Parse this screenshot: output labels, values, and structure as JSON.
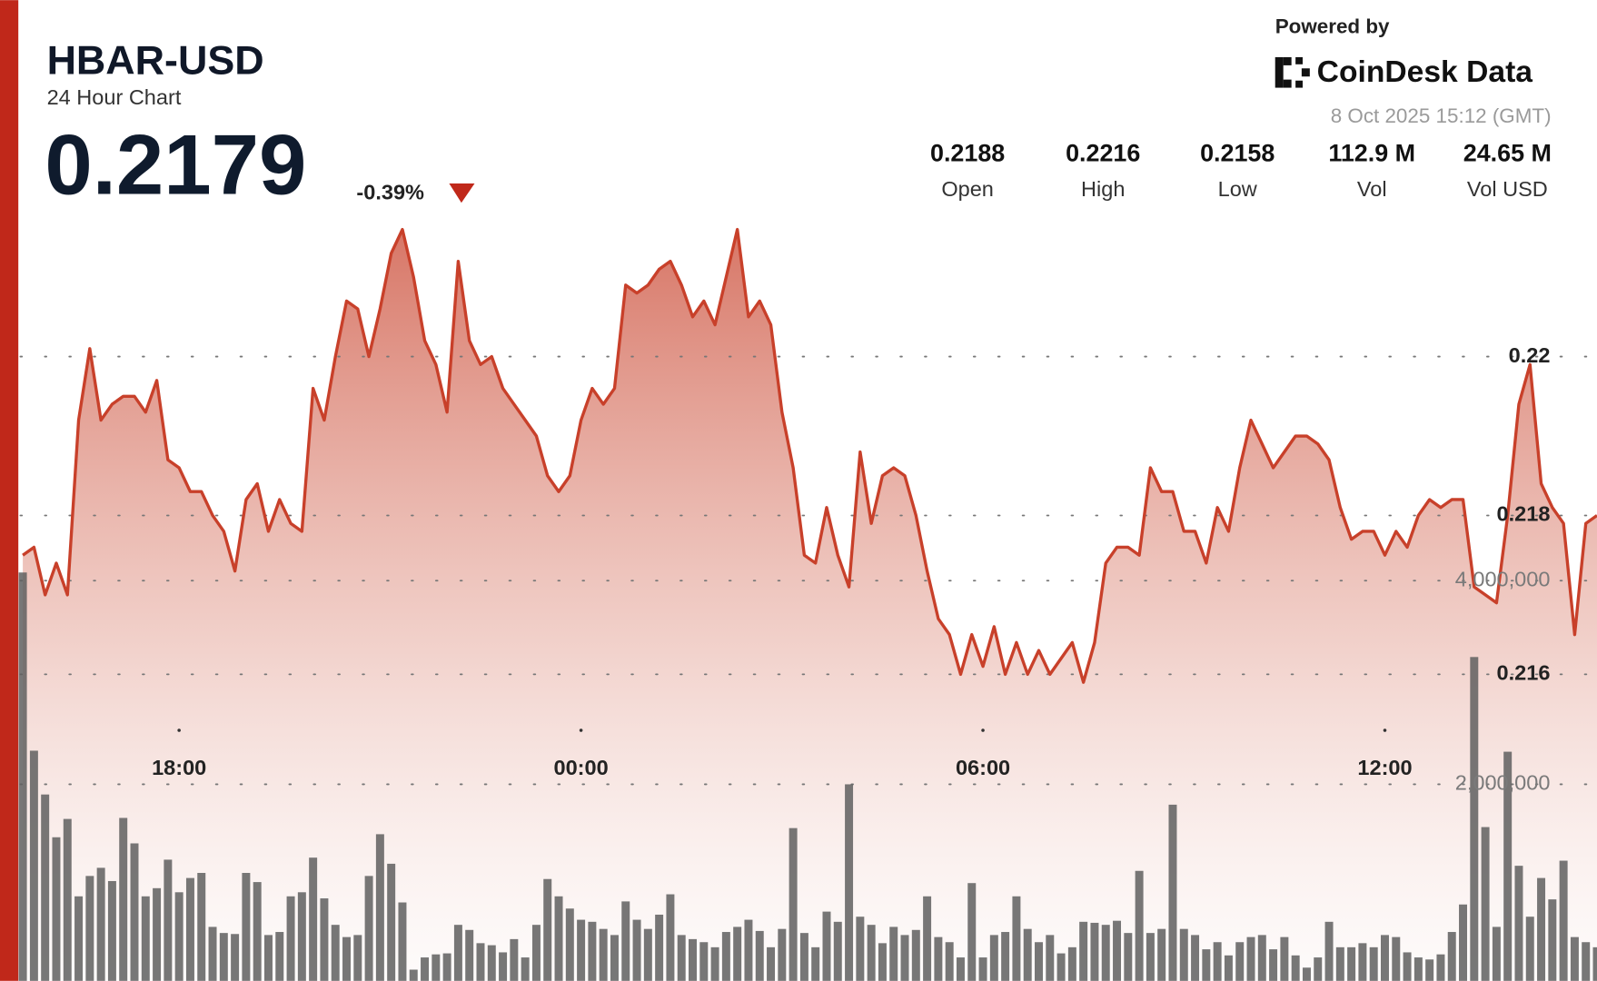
{
  "header": {
    "title": "HBAR-USD",
    "subtitle": "24 Hour Chart",
    "price": "0.2179",
    "change": "-0.39%",
    "powered_by": "Powered by",
    "brand": "CoinDesk Data",
    "timestamp": "8 Oct 2025 15:12 (GMT)",
    "stats": [
      {
        "value": "0.2188",
        "label": "Open"
      },
      {
        "value": "0.2216",
        "label": "High"
      },
      {
        "value": "0.2158",
        "label": "Low"
      },
      {
        "value": "112.9 M",
        "label": "Vol"
      },
      {
        "value": "24.65 M",
        "label": "Vol USD"
      }
    ]
  },
  "chart_data": {
    "type": "line",
    "x": [
      940,
      950,
      960,
      970,
      980,
      990,
      1000,
      1010,
      1020,
      1030,
      1040,
      1050,
      1060,
      1070,
      1080,
      1090,
      1100,
      1110,
      1120,
      1130,
      1140,
      1150,
      1160,
      1170,
      1180,
      1190,
      1200,
      1210,
      1220,
      1230,
      1240,
      1250,
      1260,
      1270,
      1280,
      1290,
      1300,
      1310,
      1320,
      1330,
      1340,
      1350,
      1360,
      1370,
      1380,
      1390,
      1400,
      1410,
      1420,
      1430,
      1440,
      1450,
      1460,
      1470,
      1480,
      1490,
      1500,
      1510,
      1520,
      1530,
      1540,
      1550,
      1560,
      1570,
      1580,
      1590,
      1600,
      1610,
      1620,
      1630,
      1640,
      1650,
      1660,
      1670,
      1680,
      1690,
      1700,
      1710,
      1720,
      1730,
      1740,
      1750,
      1760,
      1770,
      1780,
      1790,
      1800,
      1810,
      1820,
      1830,
      1840,
      1850,
      1860,
      1870,
      1880,
      1890,
      1900,
      1910,
      1920,
      1930,
      1940,
      1950,
      1960,
      1970,
      1980,
      1990,
      2000,
      2010,
      2020,
      2030,
      2040,
      2050,
      2060,
      2070,
      2080,
      2090,
      2100,
      2110,
      2120,
      2130,
      2140,
      2150,
      2160,
      2170,
      2180,
      2190,
      2200,
      2210,
      2220,
      2230,
      2240,
      2250,
      2260,
      2270,
      2280,
      2290,
      2300,
      2310,
      2320,
      2330,
      2340,
      2350
    ],
    "xlim": [
      936,
      2350
    ],
    "xticks": [
      {
        "value": 1080,
        "label": "18:00"
      },
      {
        "value": 1440,
        "label": "00:00"
      },
      {
        "value": 1800,
        "label": "06:00"
      },
      {
        "value": 2160,
        "label": "12:00"
      }
    ],
    "ylim": [
      0.212,
      0.222
    ],
    "yticks": [
      0.216,
      0.218,
      0.22
    ],
    "y2lim": [
      0,
      8000000
    ],
    "y2ticks": [
      {
        "value": 2000000,
        "label": "2,000,000"
      },
      {
        "value": 4000000,
        "label": "4,000,000"
      }
    ],
    "grid": true,
    "series": [
      {
        "type": "line",
        "color": "#c8402a",
        "values": [
          0.2175,
          0.2176,
          0.217,
          0.2174,
          0.217,
          0.2192,
          0.2201,
          0.2192,
          0.2194,
          0.2195,
          0.2195,
          0.2193,
          0.2197,
          0.2187,
          0.2186,
          0.2183,
          0.2183,
          0.218,
          0.2178,
          0.2173,
          0.2182,
          0.2184,
          0.2178,
          0.2182,
          0.2179,
          0.2178,
          0.2196,
          0.2192,
          0.22,
          0.2207,
          0.2206,
          0.22,
          0.2206,
          0.2213,
          0.2216,
          0.221,
          0.2202,
          0.2199,
          0.2193,
          0.2212,
          0.2202,
          0.2199,
          0.22,
          0.2196,
          0.2194,
          0.2192,
          0.219,
          0.2185,
          0.2183,
          0.2185,
          0.2192,
          0.2196,
          0.2194,
          0.2196,
          0.2209,
          0.2208,
          0.2209,
          0.2211,
          0.2212,
          0.2209,
          0.2205,
          0.2207,
          0.2204,
          0.221,
          0.2216,
          0.2205,
          0.2207,
          0.2204,
          0.2193,
          0.2186,
          0.2175,
          0.2174,
          0.2181,
          0.2175,
          0.2171,
          0.2188,
          0.2179,
          0.2185,
          0.2186,
          0.2185,
          0.218,
          0.2173,
          0.2167,
          0.2165,
          0.216,
          0.2165,
          0.2161,
          0.2166,
          0.216,
          0.2164,
          0.216,
          0.2163,
          0.216,
          0.2162,
          0.2164,
          0.2159,
          0.2164,
          0.2174,
          0.2176,
          0.2176,
          0.2175,
          0.2186,
          0.2183,
          0.2183,
          0.2178,
          0.2178,
          0.2174,
          0.2181,
          0.2178,
          0.2186,
          0.2192,
          0.2189,
          0.2186,
          0.2188,
          0.219,
          0.219,
          0.2189,
          0.2187,
          0.2181,
          0.2177,
          0.2178,
          0.2178,
          0.2175,
          0.2178,
          0.2176,
          0.218,
          0.2182,
          0.2181,
          0.2182,
          0.2182,
          0.2171,
          0.217,
          0.2169,
          0.218,
          0.2194,
          0.2199,
          0.2184,
          0.2181,
          0.2179,
          0.2165,
          0.2179,
          0.218
        ]
      },
      {
        "type": "bar",
        "axis": "y2",
        "color": "#5f5f5f",
        "values": [
          4080000,
          2330000,
          1900000,
          1480000,
          1660000,
          900000,
          1100000,
          1180000,
          1050000,
          1670000,
          1420000,
          900000,
          980000,
          1260000,
          940000,
          1080000,
          1130000,
          600000,
          540000,
          530000,
          1130000,
          1040000,
          520000,
          550000,
          900000,
          940000,
          1280000,
          880000,
          620000,
          500000,
          520000,
          1100000,
          1510000,
          1220000,
          840000,
          180000,
          300000,
          330000,
          340000,
          620000,
          570000,
          440000,
          420000,
          350000,
          480000,
          300000,
          620000,
          1070000,
          900000,
          780000,
          670000,
          650000,
          580000,
          520000,
          850000,
          670000,
          580000,
          720000,
          920000,
          520000,
          480000,
          450000,
          400000,
          550000,
          600000,
          670000,
          560000,
          400000,
          580000,
          1570000,
          540000,
          400000,
          750000,
          650000,
          2000000,
          700000,
          620000,
          440000,
          600000,
          520000,
          570000,
          900000,
          500000,
          450000,
          300000,
          1030000,
          300000,
          520000,
          550000,
          900000,
          580000,
          450000,
          520000,
          340000,
          400000,
          650000,
          640000,
          620000,
          660000,
          540000,
          1150000,
          540000,
          580000,
          1800000,
          580000,
          520000,
          380000,
          450000,
          320000,
          450000,
          500000,
          520000,
          380000,
          500000,
          320000,
          200000,
          300000,
          650000,
          400000,
          400000,
          440000,
          400000,
          520000,
          500000,
          350000,
          300000,
          280000,
          330000,
          550000,
          820000,
          3250000,
          1580000,
          600000,
          2320000,
          1200000,
          700000,
          1080000,
          870000,
          1250000,
          500000,
          450000,
          400000
        ]
      }
    ]
  }
}
